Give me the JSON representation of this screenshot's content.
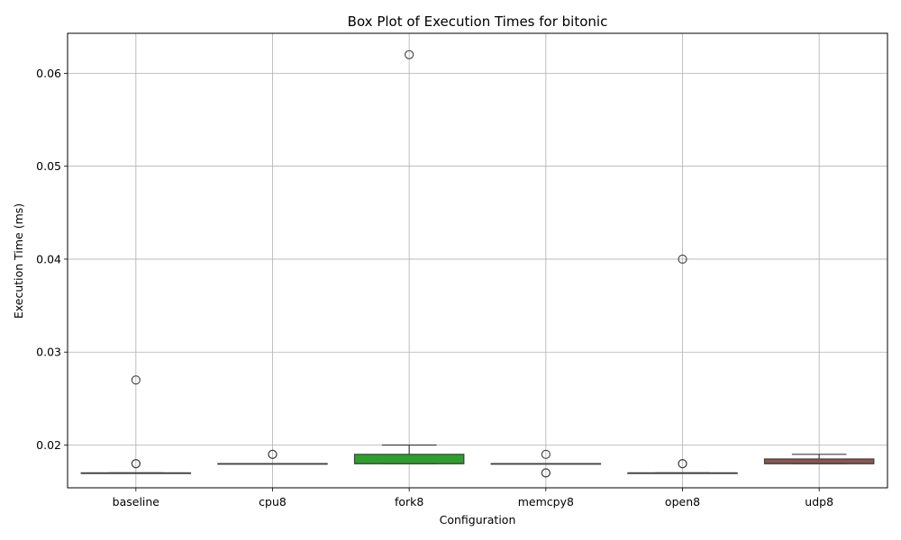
{
  "chart_data": {
    "type": "box",
    "title": "Box Plot of Execution Times for bitonic",
    "xlabel": "Configuration",
    "ylabel": "Execution Time (ms)",
    "ylim": [
      0.0154,
      0.0643
    ],
    "yticks": [
      "0.02",
      "0.03",
      "0.04",
      "0.05",
      "0.06"
    ],
    "grid": true,
    "categories": [
      "baseline",
      "cpu8",
      "fork8",
      "memcpy8",
      "open8",
      "udp8"
    ],
    "boxes": [
      {
        "name": "baseline",
        "color": "#1f77b4",
        "whislo": 0.017,
        "q1": 0.017,
        "med": 0.017,
        "q3": 0.017,
        "whishi": 0.017,
        "fliers": [
          0.027,
          0.018,
          0.018
        ]
      },
      {
        "name": "cpu8",
        "color": "#ff7f0e",
        "whislo": 0.018,
        "q1": 0.018,
        "med": 0.018,
        "q3": 0.018,
        "whishi": 0.018,
        "fliers": [
          0.019,
          0.019
        ]
      },
      {
        "name": "fork8",
        "color": "#2ca02c",
        "whislo": 0.018,
        "q1": 0.018,
        "med": 0.018,
        "q3": 0.019,
        "whishi": 0.02,
        "fliers": [
          0.062
        ]
      },
      {
        "name": "memcpy8",
        "color": "#d62728",
        "whislo": 0.018,
        "q1": 0.018,
        "med": 0.018,
        "q3": 0.018,
        "whishi": 0.018,
        "fliers": [
          0.019,
          0.017,
          0.017
        ]
      },
      {
        "name": "open8",
        "color": "#9467bd",
        "whislo": 0.017,
        "q1": 0.017,
        "med": 0.017,
        "q3": 0.017,
        "whishi": 0.017,
        "fliers": [
          0.04,
          0.018,
          0.018
        ]
      },
      {
        "name": "udp8",
        "color": "#8c564b",
        "whislo": 0.018,
        "q1": 0.018,
        "med": 0.018,
        "q3": 0.0185,
        "whishi": 0.019,
        "fliers": []
      }
    ]
  }
}
